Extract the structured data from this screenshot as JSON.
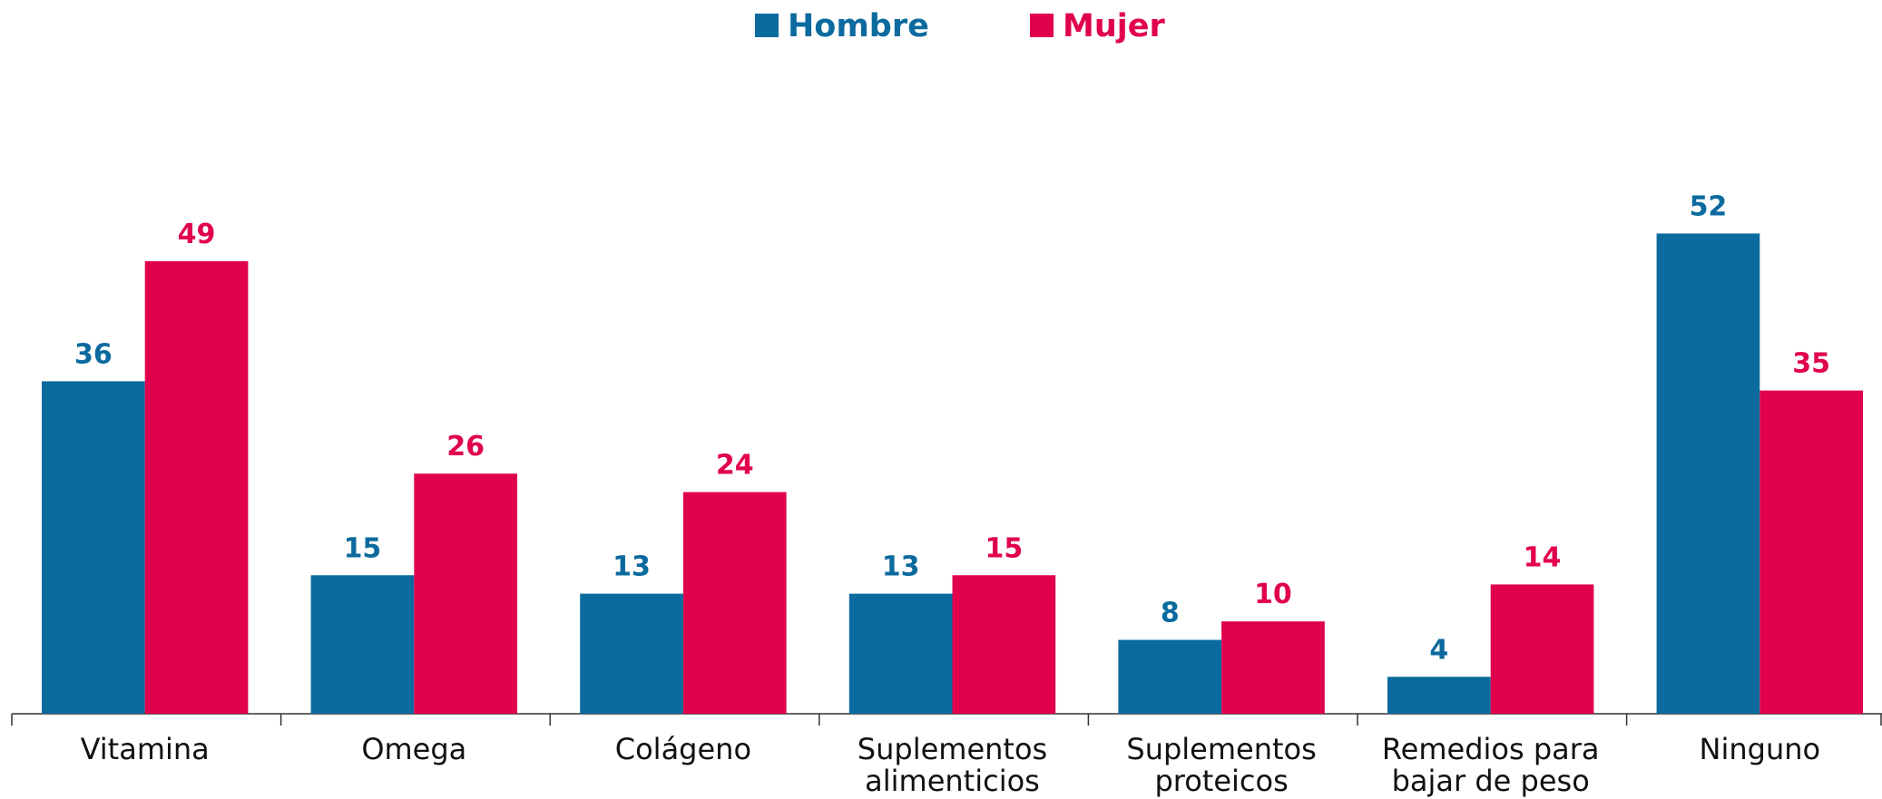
{
  "chart_data": {
    "type": "bar",
    "categories": [
      "Vitamina",
      "Omega",
      "Colágeno",
      "Suplementos\nalimenticios",
      "Suplementos\nproteicos",
      "Remedios para\nbajar de peso",
      "Ninguno"
    ],
    "series": [
      {
        "name": "Hombre",
        "color": "#0b6a9e",
        "values": [
          36,
          15,
          13,
          13,
          8,
          4,
          52
        ]
      },
      {
        "name": "Mujer",
        "color": "#e0004d",
        "values": [
          49,
          26,
          24,
          15,
          10,
          14,
          35
        ]
      }
    ],
    "ylim": [
      0,
      60
    ],
    "legend": "top"
  }
}
